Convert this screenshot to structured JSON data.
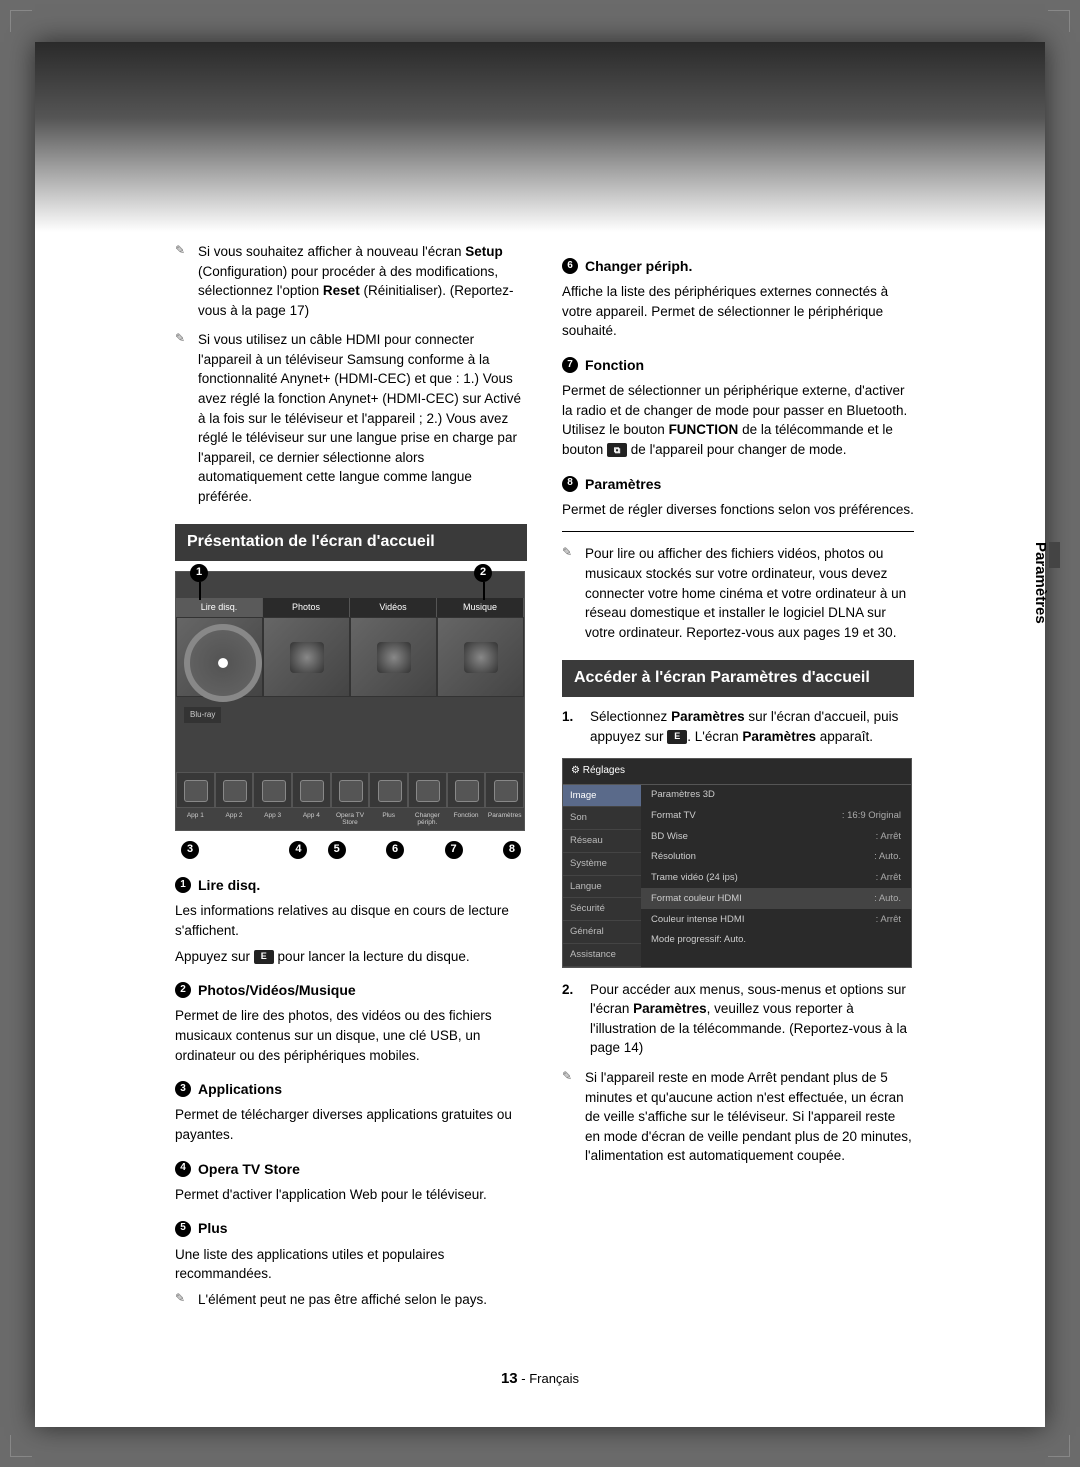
{
  "side_tab": "Paramètres",
  "footer": {
    "page": "13",
    "lang": "- Français"
  },
  "left": {
    "notes": [
      "Si vous souhaitez afficher à nouveau l'écran <b>Setup</b> (Configuration) pour procéder à des modifications, sélectionnez l'option <b>Reset</b> (Réinitialiser). (Reportez-vous à la page 17)",
      "Si vous utilisez un câble HDMI pour connecter l'appareil à un téléviseur Samsung conforme à la fonctionnalité Anynet+ (HDMI-CEC) et que : 1.) Vous avez réglé la fonction Anynet+ (HDMI-CEC) sur Activé à la fois sur le téléviseur et l'appareil ; 2.) Vous avez réglé le téléviseur sur une langue prise en charge par l'appareil, ce dernier sélectionne alors automatiquement cette langue comme langue préférée."
    ],
    "heading": "Présentation de l'écran d'accueil",
    "tv": {
      "tabs": [
        "Lire disq.",
        "Photos",
        "Vidéos",
        "Musique"
      ],
      "bluray": "Blu-ray",
      "bottom_labels": [
        "App 1",
        "App 2",
        "App 3",
        "App 4",
        "Opera TV Store",
        "Plus",
        "Changer périph.",
        "Fonction",
        "Paramètres"
      ]
    },
    "refnums": [
      "3",
      "4",
      "5",
      "6",
      "7",
      "8"
    ],
    "items": [
      {
        "n": "1",
        "title": "Lire disq.",
        "body": "Les informations relatives au disque en cours de lecture s'affichent.",
        "extra": "Appuyez sur [E] pour lancer la lecture du disque."
      },
      {
        "n": "2",
        "title": "Photos/Vidéos/Musique",
        "body": "Permet de lire des photos, des vidéos ou des fichiers musicaux contenus sur un disque, une clé USB, un ordinateur ou des périphériques mobiles."
      },
      {
        "n": "3",
        "title": "Applications",
        "body": "Permet de télécharger diverses applications gratuites ou payantes."
      },
      {
        "n": "4",
        "title": "Opera TV Store",
        "body": "Permet d'activer l'application Web pour le téléviseur."
      },
      {
        "n": "5",
        "title": "Plus",
        "body": "Une liste des applications utiles et populaires recommandées.",
        "subnote": "L'élément peut ne pas être affiché selon le pays."
      }
    ]
  },
  "right": {
    "items": [
      {
        "n": "6",
        "title": "Changer périph.",
        "body": "Affiche la liste des périphériques externes connectés à votre appareil. Permet de sélectionner le périphérique souhaité."
      },
      {
        "n": "7",
        "title": "Fonction",
        "body": "Permet de sélectionner un périphérique externe, d'activer la radio et de changer de mode pour passer en Bluetooth. Utilisez le bouton <b>FUNCTION</b> de la télécommande et le bouton [F] de l'appareil pour changer de mode."
      },
      {
        "n": "8",
        "title": "Paramètres",
        "body": "Permet de régler diverses fonctions selon vos préférences."
      }
    ],
    "mid_note": "Pour lire ou afficher des fichiers vidéos, photos ou musicaux stockés sur votre ordinateur, vous devez connecter votre home cinéma et votre ordinateur à un réseau domestique et installer le logiciel DLNA sur votre ordinateur. Reportez-vous aux pages 19 et 30.",
    "heading": "Accéder à l'écran Paramètres d'accueil",
    "ol1": "Sélectionnez <b>Paramètres</b> sur l'écran d'accueil, puis appuyez sur [E]. L'écran <b>Paramètres</b> apparaît.",
    "settings": {
      "title": "Réglages",
      "side": [
        "Image",
        "Son",
        "Réseau",
        "Système",
        "Langue",
        "Sécurité",
        "Général",
        "Assistance"
      ],
      "rows": [
        {
          "l": "Paramètres 3D",
          "v": ""
        },
        {
          "l": "Format TV",
          "v": ": 16:9 Original"
        },
        {
          "l": "BD Wise",
          "v": ": Arrêt"
        },
        {
          "l": "Résolution",
          "v": ": Auto."
        },
        {
          "l": "Trame vidéo (24 ips)",
          "v": ": Arrêt"
        },
        {
          "l": "Format couleur HDMI",
          "v": ": Auto."
        },
        {
          "l": "Couleur intense HDMI",
          "v": ": Arrêt"
        },
        {
          "l": "Mode progressif: Auto.",
          "v": ""
        }
      ]
    },
    "ol2": "Pour accéder aux menus, sous-menus et options sur l'écran <b>Paramètres</b>, veuillez vous reporter à l'illustration de la télécommande. (Reportez-vous à la page 14)",
    "end_note": "Si l'appareil reste en mode Arrêt pendant plus de 5 minutes et qu'aucune action n'est effectuée, un écran de veille s'affiche sur le téléviseur. Si l'appareil reste en mode d'écran de veille pendant plus de 20 minutes, l'alimentation est automatiquement coupée."
  }
}
